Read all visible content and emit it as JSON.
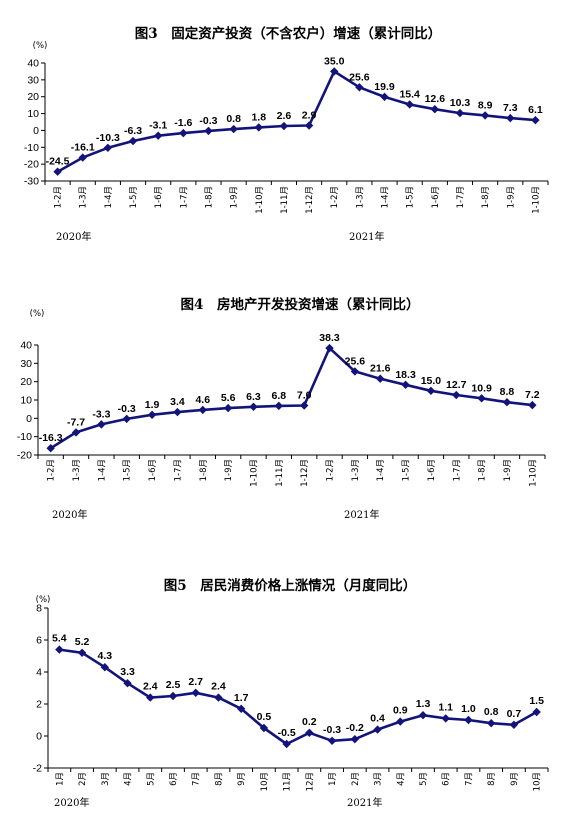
{
  "colors": {
    "series": "#13147a",
    "axis": "#000000"
  },
  "chart_data": [
    {
      "type": "line",
      "title": "图3　固定资产投资（不含农户）增速（累计同比）",
      "unit": "(%)",
      "categories": [
        "1-2月",
        "1-3月",
        "1-4月",
        "1-5月",
        "1-6月",
        "1-7月",
        "1-8月",
        "1-9月",
        "1-10月",
        "1-11月",
        "1-12月",
        "1-2月",
        "1-3月",
        "1-4月",
        "1-5月",
        "1-6月",
        "1-7月",
        "1-8月",
        "1-9月",
        "1-10月"
      ],
      "year_labels": [
        "2020年",
        "2021年"
      ],
      "ylim": [
        -30,
        40
      ],
      "yticks": [
        40,
        30,
        20,
        10,
        0,
        -10,
        -20,
        -30
      ],
      "series": [
        {
          "values": [
            -24.5,
            -16.1,
            -10.3,
            -6.3,
            -3.1,
            -1.6,
            -0.3,
            0.8,
            1.8,
            2.6,
            2.9,
            35.0,
            25.6,
            19.9,
            15.4,
            12.6,
            10.3,
            8.9,
            7.3,
            6.1
          ],
          "labels": [
            "-24.5",
            "-16.1",
            "-10.3",
            "-6.3",
            "-3.1",
            "-1.6",
            "-0.3",
            "0.8",
            "1.8",
            "2.6",
            "2.9",
            "35.0",
            "25.6",
            "19.9",
            "15.4",
            "12.6",
            "10.3",
            "8.9",
            "7.3",
            "6.1"
          ]
        }
      ]
    },
    {
      "type": "line",
      "title": "图4　房地产开发投资增速（累计同比）",
      "unit": "(%)",
      "categories": [
        "1-2月",
        "1-3月",
        "1-4月",
        "1-5月",
        "1-6月",
        "1-7月",
        "1-8月",
        "1-9月",
        "1-10月",
        "1-11月",
        "1-12月",
        "1-2月",
        "1-3月",
        "1-4月",
        "1-5月",
        "1-6月",
        "1-7月",
        "1-8月",
        "1-9月",
        "1-10月"
      ],
      "year_labels": [
        "2020年",
        "2021年"
      ],
      "ylim": [
        -20,
        40
      ],
      "yticks": [
        40,
        30,
        20,
        10,
        0,
        -10,
        -20
      ],
      "series": [
        {
          "values": [
            -16.3,
            -7.7,
            -3.3,
            -0.3,
            1.9,
            3.4,
            4.6,
            5.6,
            6.3,
            6.8,
            7.0,
            38.3,
            25.6,
            21.6,
            18.3,
            15.0,
            12.7,
            10.9,
            8.8,
            7.2
          ],
          "labels": [
            "-16.3",
            "-7.7",
            "-3.3",
            "-0.3",
            "1.9",
            "3.4",
            "4.6",
            "5.6",
            "6.3",
            "6.8",
            "7.0",
            "38.3",
            "25.6",
            "21.6",
            "18.3",
            "15.0",
            "12.7",
            "10.9",
            "8.8",
            "7.2"
          ]
        }
      ]
    },
    {
      "type": "line",
      "title": "图5　居民消费价格上涨情况（月度同比）",
      "unit": "(%)",
      "categories": [
        "1月",
        "2月",
        "3月",
        "4月",
        "5月",
        "6月",
        "7月",
        "8月",
        "9月",
        "10月",
        "11月",
        "12月",
        "1月",
        "2月",
        "3月",
        "4月",
        "5月",
        "6月",
        "7月",
        "8月",
        "9月",
        "10月"
      ],
      "year_labels": [
        "2020年",
        "2021年"
      ],
      "ylim": [
        -2,
        8
      ],
      "yticks": [
        8,
        6,
        4,
        2,
        0,
        -2
      ],
      "series": [
        {
          "values": [
            5.4,
            5.2,
            4.3,
            3.3,
            2.4,
            2.5,
            2.7,
            2.4,
            1.7,
            0.5,
            -0.5,
            0.2,
            -0.3,
            -0.2,
            0.4,
            0.9,
            1.3,
            1.1,
            1.0,
            0.8,
            0.7,
            1.5
          ],
          "labels": [
            "5.4",
            "5.2",
            "4.3",
            "3.3",
            "2.4",
            "2.5",
            "2.7",
            "2.4",
            "1.7",
            "0.5",
            "-0.5",
            "0.2",
            "-0.3",
            "-0.2",
            "0.4",
            "0.9",
            "1.3",
            "1.1",
            "1.0",
            "0.8",
            "0.7",
            "1.5"
          ]
        }
      ]
    }
  ]
}
